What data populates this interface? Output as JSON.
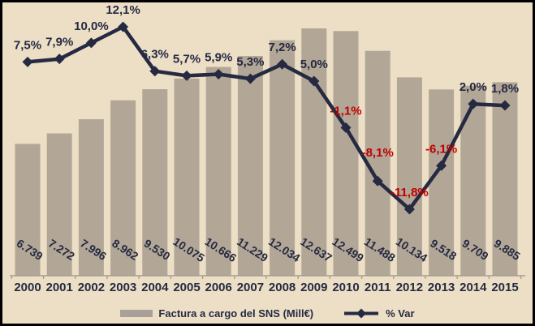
{
  "chart_data": {
    "type": "bar+line",
    "categories": [
      "2000",
      "2001",
      "2002",
      "2003",
      "2004",
      "2005",
      "2006",
      "2007",
      "2008",
      "2009",
      "2010",
      "2011",
      "2012",
      "2013",
      "2014",
      "2015"
    ],
    "series": [
      {
        "name": "Factura a cargo del SNS (Mill€)",
        "type": "bar",
        "values": [
          6739,
          7272,
          7996,
          8962,
          9530,
          10075,
          10666,
          11229,
          12034,
          12637,
          12499,
          11488,
          10134,
          9518,
          9709,
          9885
        ],
        "labels": [
          "6.739",
          "7.272",
          "7.996",
          "8.962",
          "9.530",
          "10.075",
          "10.666",
          "11.229",
          "12.034",
          "12.637",
          "12.499",
          "11.488",
          "10.134",
          "9.518",
          "9.709",
          "9.885"
        ]
      },
      {
        "name": "% Var",
        "type": "line",
        "values": [
          7.5,
          7.9,
          10.0,
          12.1,
          6.3,
          5.7,
          5.9,
          5.3,
          7.2,
          5.0,
          -1.1,
          -8.1,
          -11.8,
          -6.1,
          2.0,
          1.8
        ],
        "labels": [
          "7,5%",
          "7,9%",
          "10,0%",
          "12,1%",
          "6,3%",
          "5,7%",
          "5,9%",
          "5,3%",
          "7,2%",
          "5,0%",
          "-1,1%",
          "-8,1%",
          "-11,8%",
          "-6,1%",
          "2,0%",
          "1,8%"
        ]
      }
    ],
    "title": "",
    "xlabel": "",
    "ylabel": "",
    "ylim_bars": [
      0,
      13000
    ],
    "grid": false,
    "value_axis_visible": false,
    "category_axis_visible": true,
    "legend_position": "bottom",
    "colors": {
      "background": "#ecdfc6",
      "bar": "#b2a696",
      "legend_bar_swatch": "#a9a199",
      "line": "#252a42",
      "label": "#252a42",
      "negative_label": "#c00000",
      "axis": "#a59d90",
      "frame_border": "#000000"
    }
  },
  "legend": {
    "items": [
      {
        "label": "Factura a cargo del SNS (Mill€)",
        "swatch": "bar"
      },
      {
        "label": "% Var",
        "swatch": "line"
      }
    ]
  }
}
